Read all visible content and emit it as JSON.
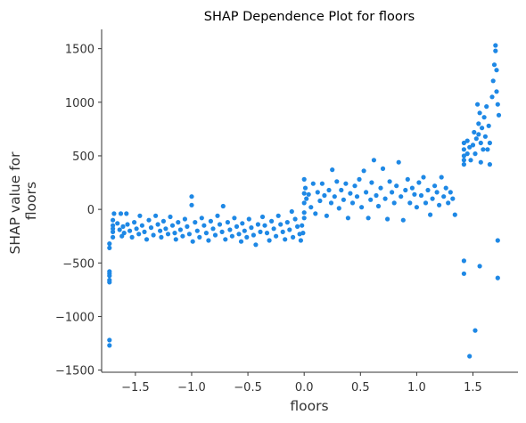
{
  "chart_data": {
    "type": "scatter",
    "title": "SHAP Dependence Plot for floors",
    "xlabel": "floors",
    "ylabel_lines": [
      "SHAP value for",
      "floors"
    ],
    "xlim": [
      -1.8,
      1.9
    ],
    "ylim": [
      -1520,
      1680
    ],
    "xticks": [
      -1.5,
      -1.0,
      -0.5,
      0.0,
      0.5,
      1.0,
      1.5
    ],
    "xtick_labels": [
      "−1.5",
      "−1.0",
      "−0.5",
      "0.0",
      "0.5",
      "1.0",
      "1.5"
    ],
    "yticks": [
      1500,
      1000,
      500,
      0,
      -500,
      -1000,
      -1500
    ],
    "ytick_labels": [
      "1500",
      "1000",
      "500",
      "0",
      "−500",
      "−1000",
      "−1500"
    ],
    "grid": false,
    "point_color": "#1E88E5",
    "series": [
      {
        "points": [
          [
            -1.73,
            -320
          ],
          [
            -1.73,
            -360
          ],
          [
            -1.73,
            -580
          ],
          [
            -1.73,
            -600
          ],
          [
            -1.73,
            -620
          ],
          [
            -1.73,
            -660
          ],
          [
            -1.73,
            -680
          ],
          [
            -1.73,
            -1220
          ],
          [
            -1.73,
            -1270
          ],
          [
            -1.7,
            -100
          ],
          [
            -1.7,
            -150
          ],
          [
            -1.7,
            -180
          ],
          [
            -1.7,
            -210
          ],
          [
            -1.7,
            -260
          ],
          [
            -1.69,
            -40
          ],
          [
            -1.66,
            -130
          ],
          [
            -1.64,
            -190
          ],
          [
            -1.63,
            -40
          ],
          [
            -1.62,
            -250
          ],
          [
            -1.61,
            -160
          ],
          [
            -1.6,
            -220
          ],
          [
            -1.58,
            -40
          ],
          [
            -1.57,
            -140
          ],
          [
            -1.55,
            -200
          ],
          [
            -1.53,
            -260
          ],
          [
            -1.51,
            -120
          ],
          [
            -1.49,
            -180
          ],
          [
            -1.47,
            -230
          ],
          [
            -1.46,
            -60
          ],
          [
            -1.44,
            -150
          ],
          [
            -1.42,
            -210
          ],
          [
            -1.4,
            -280
          ],
          [
            -1.38,
            -100
          ],
          [
            -1.36,
            -170
          ],
          [
            -1.34,
            -240
          ],
          [
            -1.32,
            -60
          ],
          [
            -1.3,
            -140
          ],
          [
            -1.28,
            -200
          ],
          [
            -1.27,
            -260
          ],
          [
            -1.25,
            -110
          ],
          [
            -1.23,
            -180
          ],
          [
            -1.21,
            -230
          ],
          [
            -1.19,
            -70
          ],
          [
            -1.17,
            -150
          ],
          [
            -1.15,
            -220
          ],
          [
            -1.14,
            -280
          ],
          [
            -1.12,
            -120
          ],
          [
            -1.1,
            -190
          ],
          [
            -1.08,
            -250
          ],
          [
            -1.06,
            -90
          ],
          [
            -1.04,
            -160
          ],
          [
            -1.02,
            -230
          ],
          [
            -1.0,
            120
          ],
          [
            -1.0,
            40
          ],
          [
            -0.99,
            -300
          ],
          [
            -0.97,
            -120
          ],
          [
            -0.95,
            -200
          ],
          [
            -0.93,
            -260
          ],
          [
            -0.91,
            -80
          ],
          [
            -0.89,
            -150
          ],
          [
            -0.87,
            -220
          ],
          [
            -0.85,
            -290
          ],
          [
            -0.83,
            -110
          ],
          [
            -0.81,
            -180
          ],
          [
            -0.79,
            -240
          ],
          [
            -0.77,
            -60
          ],
          [
            -0.75,
            -140
          ],
          [
            -0.73,
            -210
          ],
          [
            -0.72,
            30
          ],
          [
            -0.7,
            -280
          ],
          [
            -0.68,
            -120
          ],
          [
            -0.66,
            -190
          ],
          [
            -0.64,
            -250
          ],
          [
            -0.62,
            -80
          ],
          [
            -0.6,
            -160
          ],
          [
            -0.58,
            -230
          ],
          [
            -0.56,
            -300
          ],
          [
            -0.55,
            -130
          ],
          [
            -0.53,
            -200
          ],
          [
            -0.51,
            -260
          ],
          [
            -0.49,
            -90
          ],
          [
            -0.47,
            -170
          ],
          [
            -0.45,
            -240
          ],
          [
            -0.43,
            -330
          ],
          [
            -0.41,
            -140
          ],
          [
            -0.39,
            -210
          ],
          [
            -0.37,
            -70
          ],
          [
            -0.35,
            -150
          ],
          [
            -0.33,
            -220
          ],
          [
            -0.31,
            -290
          ],
          [
            -0.29,
            -110
          ],
          [
            -0.27,
            -180
          ],
          [
            -0.25,
            -250
          ],
          [
            -0.23,
            -60
          ],
          [
            -0.21,
            -140
          ],
          [
            -0.19,
            -210
          ],
          [
            -0.17,
            -280
          ],
          [
            -0.15,
            -120
          ],
          [
            -0.13,
            -190
          ],
          [
            -0.11,
            -20
          ],
          [
            -0.1,
            -260
          ],
          [
            -0.08,
            -90
          ],
          [
            -0.06,
            -160
          ],
          [
            -0.04,
            -230
          ],
          [
            -0.03,
            -290
          ],
          [
            -0.02,
            -150
          ],
          [
            -0.01,
            -220
          ],
          [
            0.0,
            280
          ],
          [
            0.0,
            150
          ],
          [
            0.0,
            60
          ],
          [
            0.0,
            -30
          ],
          [
            0.0,
            -80
          ],
          [
            0.01,
            200
          ],
          [
            0.02,
            100
          ],
          [
            0.04,
            140
          ],
          [
            0.06,
            20
          ],
          [
            0.08,
            240
          ],
          [
            0.1,
            -40
          ],
          [
            0.12,
            160
          ],
          [
            0.14,
            80
          ],
          [
            0.16,
            240
          ],
          [
            0.18,
            130
          ],
          [
            0.2,
            -60
          ],
          [
            0.22,
            180
          ],
          [
            0.24,
            60
          ],
          [
            0.25,
            370
          ],
          [
            0.27,
            120
          ],
          [
            0.29,
            260
          ],
          [
            0.31,
            10
          ],
          [
            0.33,
            180
          ],
          [
            0.35,
            90
          ],
          [
            0.37,
            240
          ],
          [
            0.39,
            -80
          ],
          [
            0.41,
            150
          ],
          [
            0.43,
            60
          ],
          [
            0.45,
            220
          ],
          [
            0.47,
            120
          ],
          [
            0.49,
            280
          ],
          [
            0.51,
            20
          ],
          [
            0.53,
            360
          ],
          [
            0.55,
            160
          ],
          [
            0.57,
            -80
          ],
          [
            0.59,
            90
          ],
          [
            0.6,
            250
          ],
          [
            0.62,
            460
          ],
          [
            0.64,
            130
          ],
          [
            0.66,
            30
          ],
          [
            0.68,
            200
          ],
          [
            0.7,
            380
          ],
          [
            0.72,
            100
          ],
          [
            0.74,
            -90
          ],
          [
            0.76,
            260
          ],
          [
            0.78,
            160
          ],
          [
            0.8,
            60
          ],
          [
            0.82,
            220
          ],
          [
            0.84,
            440
          ],
          [
            0.86,
            120
          ],
          [
            0.88,
            -100
          ],
          [
            0.9,
            180
          ],
          [
            0.92,
            280
          ],
          [
            0.94,
            60
          ],
          [
            0.96,
            200
          ],
          [
            0.98,
            140
          ],
          [
            1.0,
            20
          ],
          [
            1.02,
            250
          ],
          [
            1.04,
            130
          ],
          [
            1.06,
            300
          ],
          [
            1.08,
            60
          ],
          [
            1.1,
            180
          ],
          [
            1.12,
            -50
          ],
          [
            1.14,
            100
          ],
          [
            1.16,
            220
          ],
          [
            1.18,
            160
          ],
          [
            1.2,
            40
          ],
          [
            1.22,
            300
          ],
          [
            1.24,
            120
          ],
          [
            1.26,
            200
          ],
          [
            1.28,
            60
          ],
          [
            1.3,
            160
          ],
          [
            1.32,
            100
          ],
          [
            1.34,
            -50
          ],
          [
            1.42,
            620
          ],
          [
            1.42,
            560
          ],
          [
            1.42,
            500
          ],
          [
            1.42,
            460
          ],
          [
            1.42,
            420
          ],
          [
            1.42,
            -480
          ],
          [
            1.42,
            -600
          ],
          [
            1.45,
            640
          ],
          [
            1.45,
            520
          ],
          [
            1.47,
            580
          ],
          [
            1.48,
            460
          ],
          [
            1.5,
            600
          ],
          [
            1.51,
            720
          ],
          [
            1.52,
            520
          ],
          [
            1.53,
            660
          ],
          [
            1.54,
            980
          ],
          [
            1.55,
            800
          ],
          [
            1.55,
            700
          ],
          [
            1.56,
            900
          ],
          [
            1.56,
            -530
          ],
          [
            1.57,
            620
          ],
          [
            1.57,
            440
          ],
          [
            1.58,
            760
          ],
          [
            1.59,
            560
          ],
          [
            1.6,
            860
          ],
          [
            1.61,
            680
          ],
          [
            1.62,
            960
          ],
          [
            1.63,
            560
          ],
          [
            1.64,
            780
          ],
          [
            1.65,
            620
          ],
          [
            1.65,
            420
          ],
          [
            1.67,
            1050
          ],
          [
            1.68,
            1200
          ],
          [
            1.69,
            1350
          ],
          [
            1.7,
            1480
          ],
          [
            1.7,
            1530
          ],
          [
            1.71,
            1300
          ],
          [
            1.71,
            1100
          ],
          [
            1.72,
            980
          ],
          [
            1.73,
            880
          ],
          [
            1.72,
            -290
          ],
          [
            1.72,
            -640
          ],
          [
            1.52,
            -1130
          ],
          [
            1.47,
            -1370
          ]
        ]
      }
    ]
  }
}
